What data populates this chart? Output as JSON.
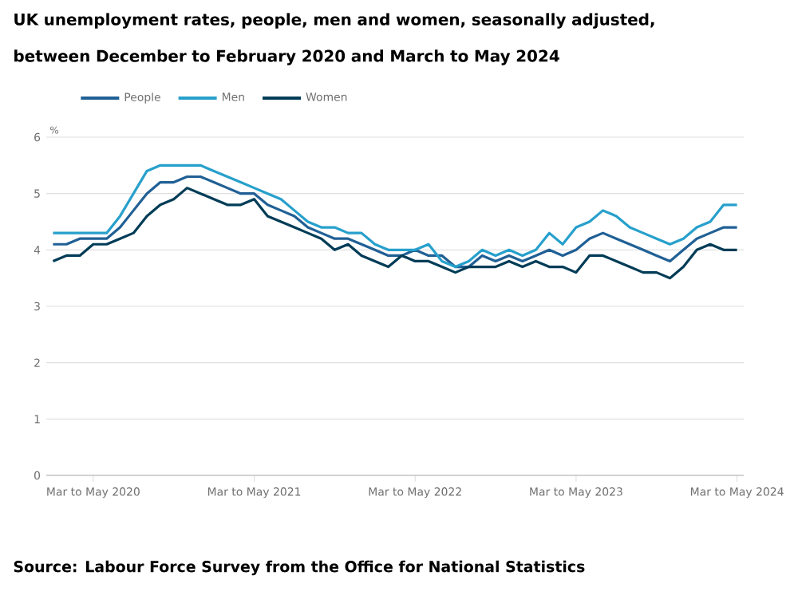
{
  "chart_data": {
    "type": "line",
    "title": "UK unemployment rates, people, men and women, seasonally adjusted, between December to February 2020 and March to May 2024",
    "ylabel": "%",
    "categories": [
      null,
      null,
      null,
      "Mar to May 2020",
      null,
      null,
      null,
      null,
      null,
      null,
      null,
      null,
      null,
      null,
      null,
      "Mar to May 2021",
      null,
      null,
      null,
      null,
      null,
      null,
      null,
      null,
      null,
      null,
      null,
      "Mar to May 2022",
      null,
      null,
      null,
      null,
      null,
      null,
      null,
      null,
      null,
      null,
      null,
      "Mar to May 2023",
      null,
      null,
      null,
      null,
      null,
      null,
      null,
      null,
      null,
      null,
      null,
      "Mar to May 2024"
    ],
    "series": [
      {
        "name": "People",
        "color": "#206095",
        "values": [
          4.1,
          4.1,
          4.2,
          4.2,
          4.2,
          4.4,
          4.7,
          5.0,
          5.2,
          5.2,
          5.3,
          5.3,
          5.2,
          5.1,
          5.0,
          5.0,
          4.8,
          4.7,
          4.6,
          4.4,
          4.3,
          4.2,
          4.2,
          4.1,
          4.0,
          3.9,
          3.9,
          4.0,
          3.9,
          3.9,
          3.7,
          3.7,
          3.9,
          3.8,
          3.9,
          3.8,
          3.9,
          4.0,
          3.9,
          4.0,
          4.2,
          4.3,
          4.2,
          4.1,
          4.0,
          3.9,
          3.8,
          4.0,
          4.2,
          4.3,
          4.4,
          4.4
        ]
      },
      {
        "name": "Men",
        "color": "#27a0cc",
        "values": [
          4.3,
          4.3,
          4.3,
          4.3,
          4.3,
          4.6,
          5.0,
          5.4,
          5.5,
          5.5,
          5.5,
          5.5,
          5.4,
          5.3,
          5.2,
          5.1,
          5.0,
          4.9,
          4.7,
          4.5,
          4.4,
          4.4,
          4.3,
          4.3,
          4.1,
          4.0,
          4.0,
          4.0,
          4.1,
          3.8,
          3.7,
          3.8,
          4.0,
          3.9,
          4.0,
          3.9,
          4.0,
          4.3,
          4.1,
          4.4,
          4.5,
          4.7,
          4.6,
          4.4,
          4.3,
          4.2,
          4.1,
          4.2,
          4.4,
          4.5,
          4.8,
          4.8
        ]
      },
      {
        "name": "Women",
        "color": "#003c57",
        "values": [
          3.8,
          3.9,
          3.9,
          4.1,
          4.1,
          4.2,
          4.3,
          4.6,
          4.8,
          4.9,
          5.1,
          5.0,
          4.9,
          4.8,
          4.8,
          4.9,
          4.6,
          4.5,
          4.4,
          4.3,
          4.2,
          4.0,
          4.1,
          3.9,
          3.8,
          3.7,
          3.9,
          3.8,
          3.8,
          3.7,
          3.6,
          3.7,
          3.7,
          3.7,
          3.8,
          3.7,
          3.8,
          3.7,
          3.7,
          3.6,
          3.9,
          3.9,
          3.8,
          3.7,
          3.6,
          3.6,
          3.5,
          3.7,
          4.0,
          4.1,
          4.0,
          4.0
        ]
      }
    ],
    "ylim": [
      0,
      6
    ],
    "yticks": [
      0,
      1,
      2,
      3,
      4,
      5,
      6
    ],
    "grid": "y",
    "legend": "top",
    "marker": "none",
    "line_style": "solid",
    "annotations": [
      "Source: Labour Force Survey from the Office for National Statistics"
    ]
  }
}
